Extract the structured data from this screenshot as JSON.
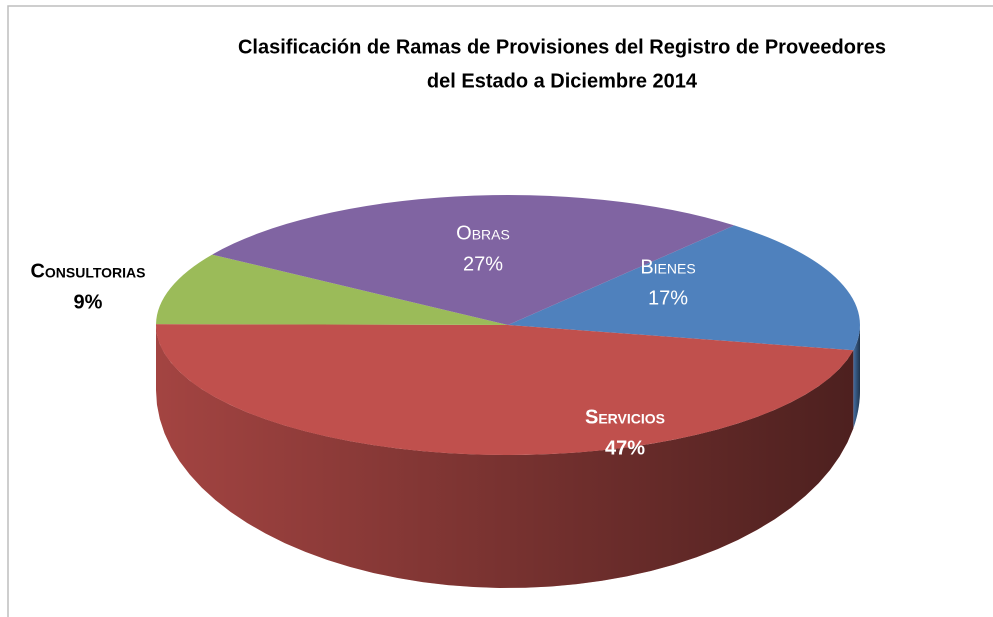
{
  "chart_data": {
    "type": "pie3d",
    "title": [
      "Clasificación de Ramas de Provisiones del Registro de Proveedores",
      "del Estado a Diciembre  2014"
    ],
    "categories": [
      "Bienes",
      "Servicios",
      "Consultorias",
      "Obras"
    ],
    "values": [
      17,
      47,
      9,
      27
    ],
    "value_labels": [
      "17%",
      "47%",
      "9%",
      "27%"
    ],
    "colors": [
      "#4f81bd",
      "#c0504d",
      "#9bbb59",
      "#8064a2"
    ]
  }
}
